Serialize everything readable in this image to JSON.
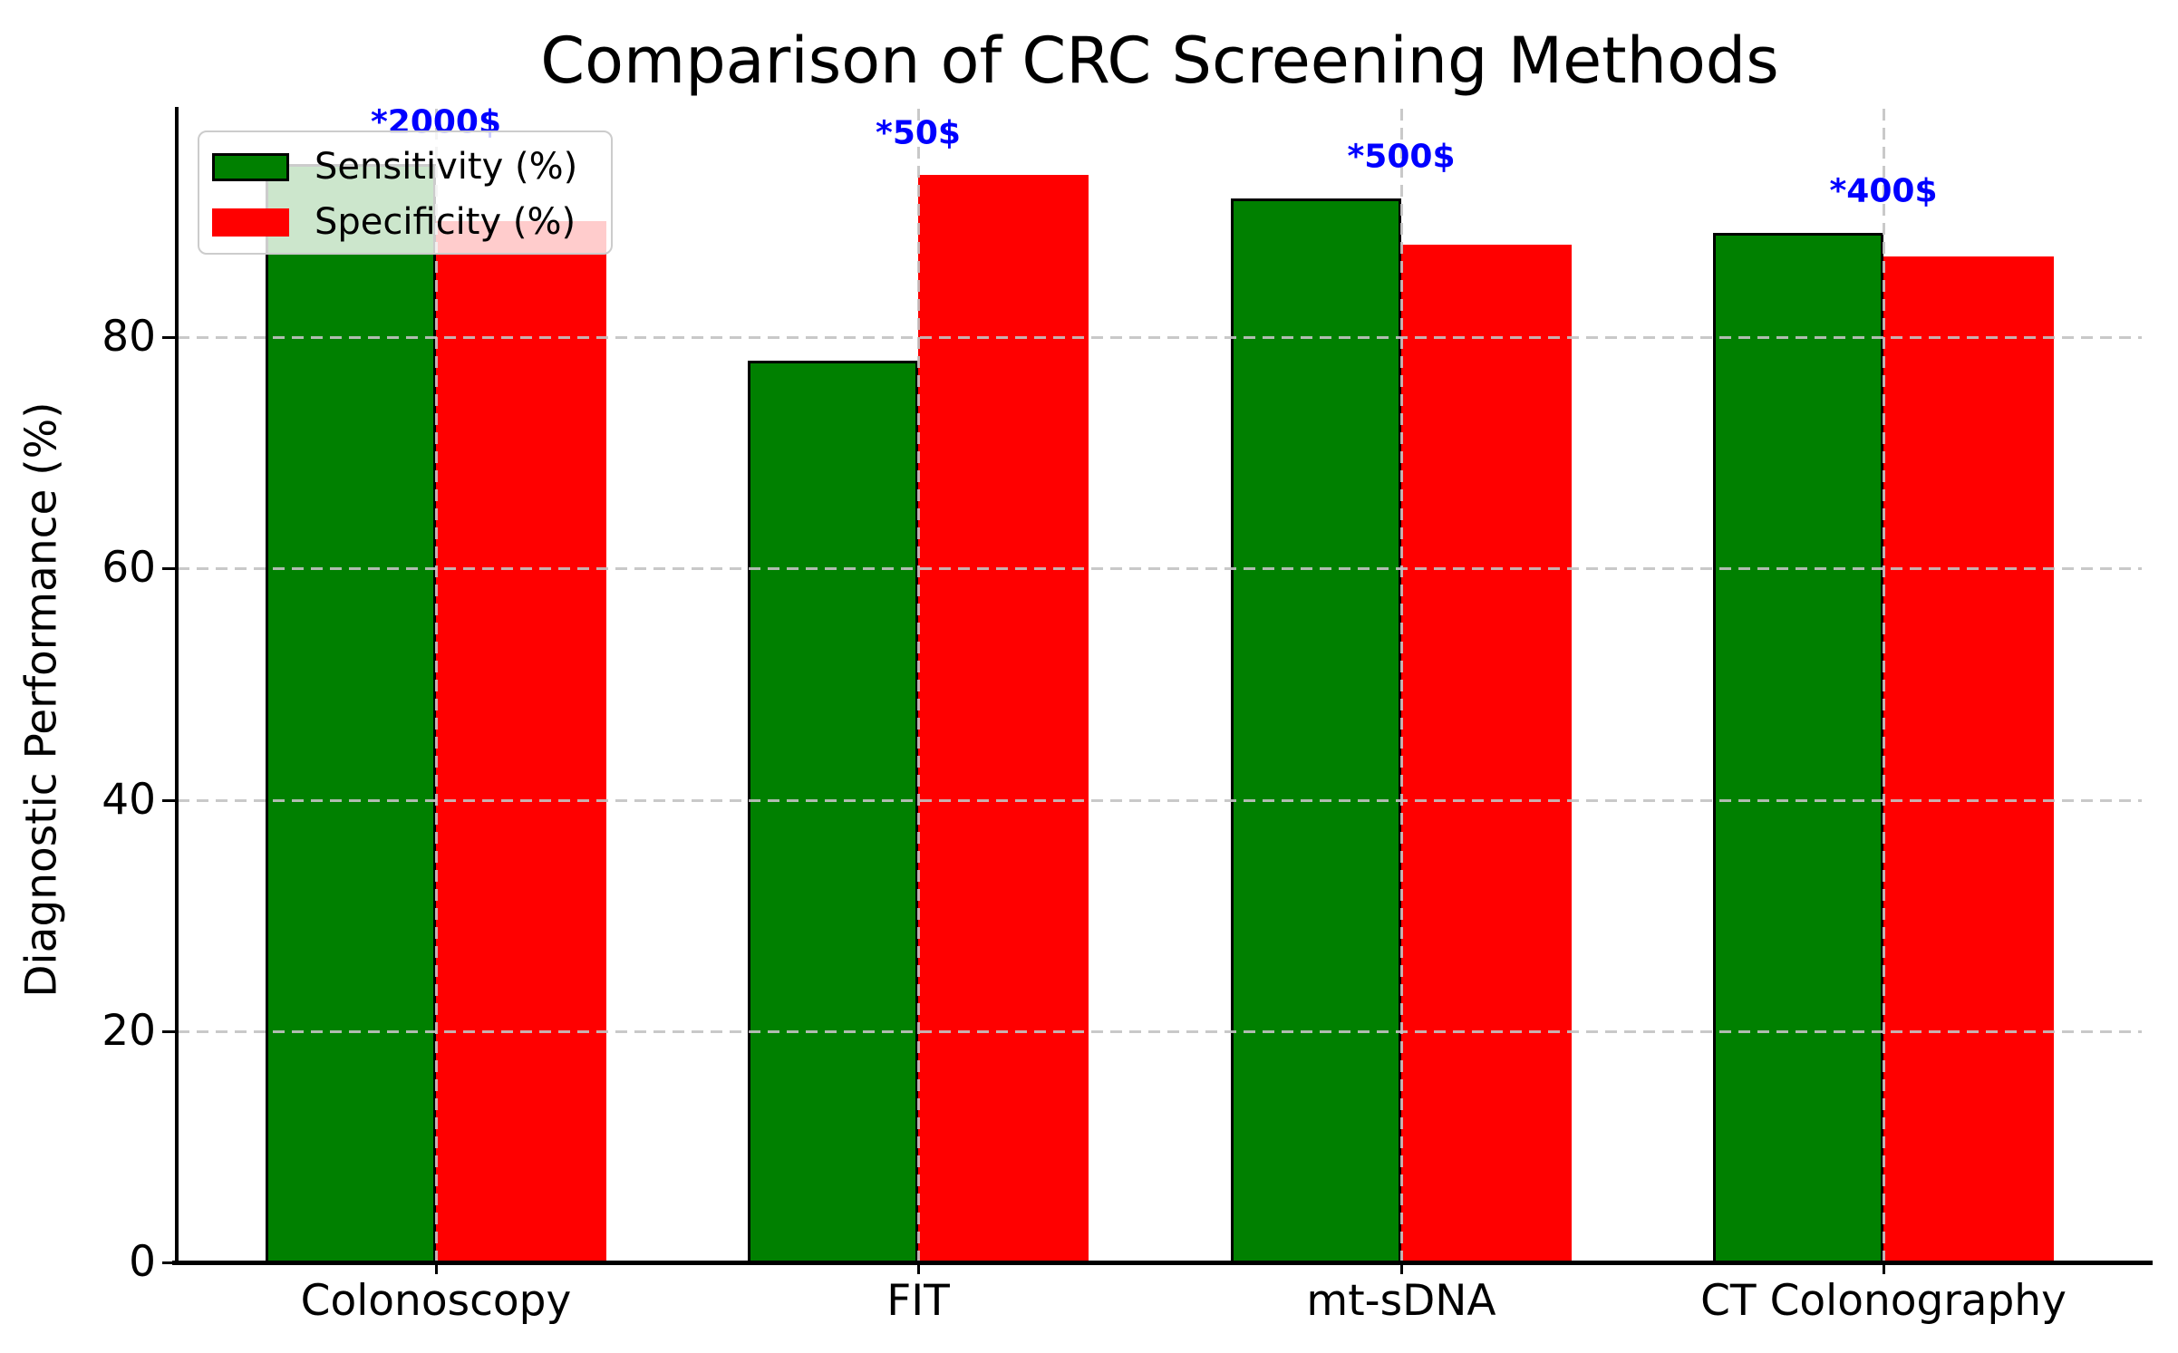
{
  "chart_data": {
    "type": "bar",
    "title": "Comparison of CRC Screening Methods",
    "ylabel": "Diagnostic Performance (%)",
    "xlabel": "",
    "categories": [
      "Colonoscopy",
      "FIT",
      "mt-sDNA",
      "CT Colonography"
    ],
    "series": [
      {
        "name": "Sensitivity (%)",
        "color": "#008000",
        "edgecolor": "#000000",
        "values": [
          95,
          78,
          92,
          89
        ]
      },
      {
        "name": "Specificity (%)",
        "color": "#ff0000",
        "edgecolor": null,
        "values": [
          90,
          94,
          88,
          87
        ]
      }
    ],
    "cost_annotations": {
      "labels": [
        "*2000$",
        "*50$",
        "*500$",
        "*400$"
      ],
      "color": "#0000ff",
      "offset_above_max": 3.6
    },
    "yticks": [
      0,
      20,
      40,
      60,
      80
    ],
    "ytick_labels": [
      "0",
      "20",
      "40",
      "60",
      "80"
    ],
    "ylim": [
      0,
      99.75
    ],
    "grid": {
      "show": true,
      "style": "dashed",
      "color": "#c3c3c3",
      "over_bars": true
    },
    "legend": {
      "position": "upper left"
    }
  }
}
